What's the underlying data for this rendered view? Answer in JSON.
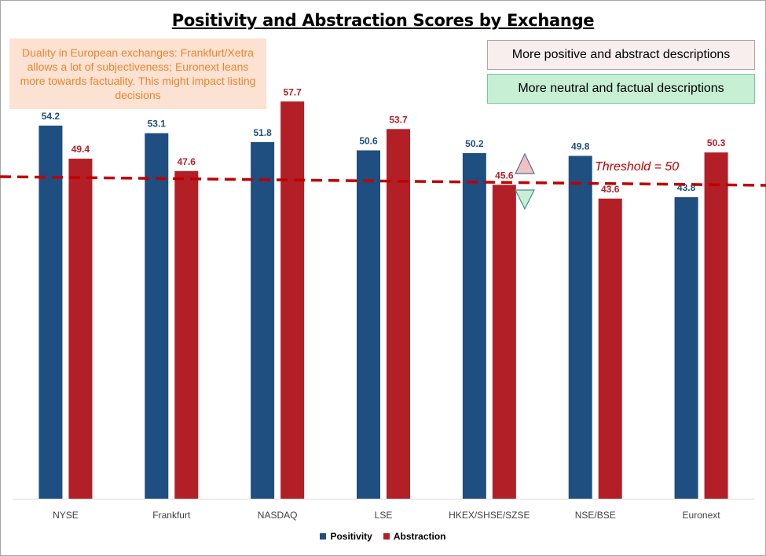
{
  "title": "Positivity and Abstraction Scores by Exchange",
  "note": "Duality in European exchanges: Frankfurt/Xetra allows a lot of subjectiveness; Euronext leans more towards factuality. This might impact listing decisions",
  "legend_boxes": {
    "positive": "More positive and abstract descriptions",
    "neutral": "More neutral and factual descriptions"
  },
  "threshold_label": "Threshold = 50",
  "colors": {
    "positivity": "#1f4e80",
    "abstraction": "#b31f27",
    "threshold": "#c00000",
    "note_text": "#e8862f",
    "note_bg": "#fbe2d2",
    "up_triangle": "#f2c1c1",
    "down_triangle": "#c6efd4"
  },
  "chart_data": {
    "type": "bar",
    "title": "Positivity and Abstraction Scores by Exchange",
    "categories": [
      "NYSE",
      "Frankfurt",
      "NASDAQ",
      "LSE",
      "HKEX/SHSE/SZSE",
      "NSE/BSE",
      "Euronext"
    ],
    "series": [
      {
        "name": "Positivity",
        "values": [
          54.2,
          53.1,
          51.8,
          50.6,
          50.2,
          49.8,
          43.8
        ]
      },
      {
        "name": "Abstraction",
        "values": [
          49.4,
          47.6,
          57.7,
          53.7,
          45.6,
          43.6,
          50.3
        ]
      }
    ],
    "threshold": 50,
    "xlabel": "",
    "ylabel": "",
    "legend_position": "bottom",
    "grid": false
  }
}
